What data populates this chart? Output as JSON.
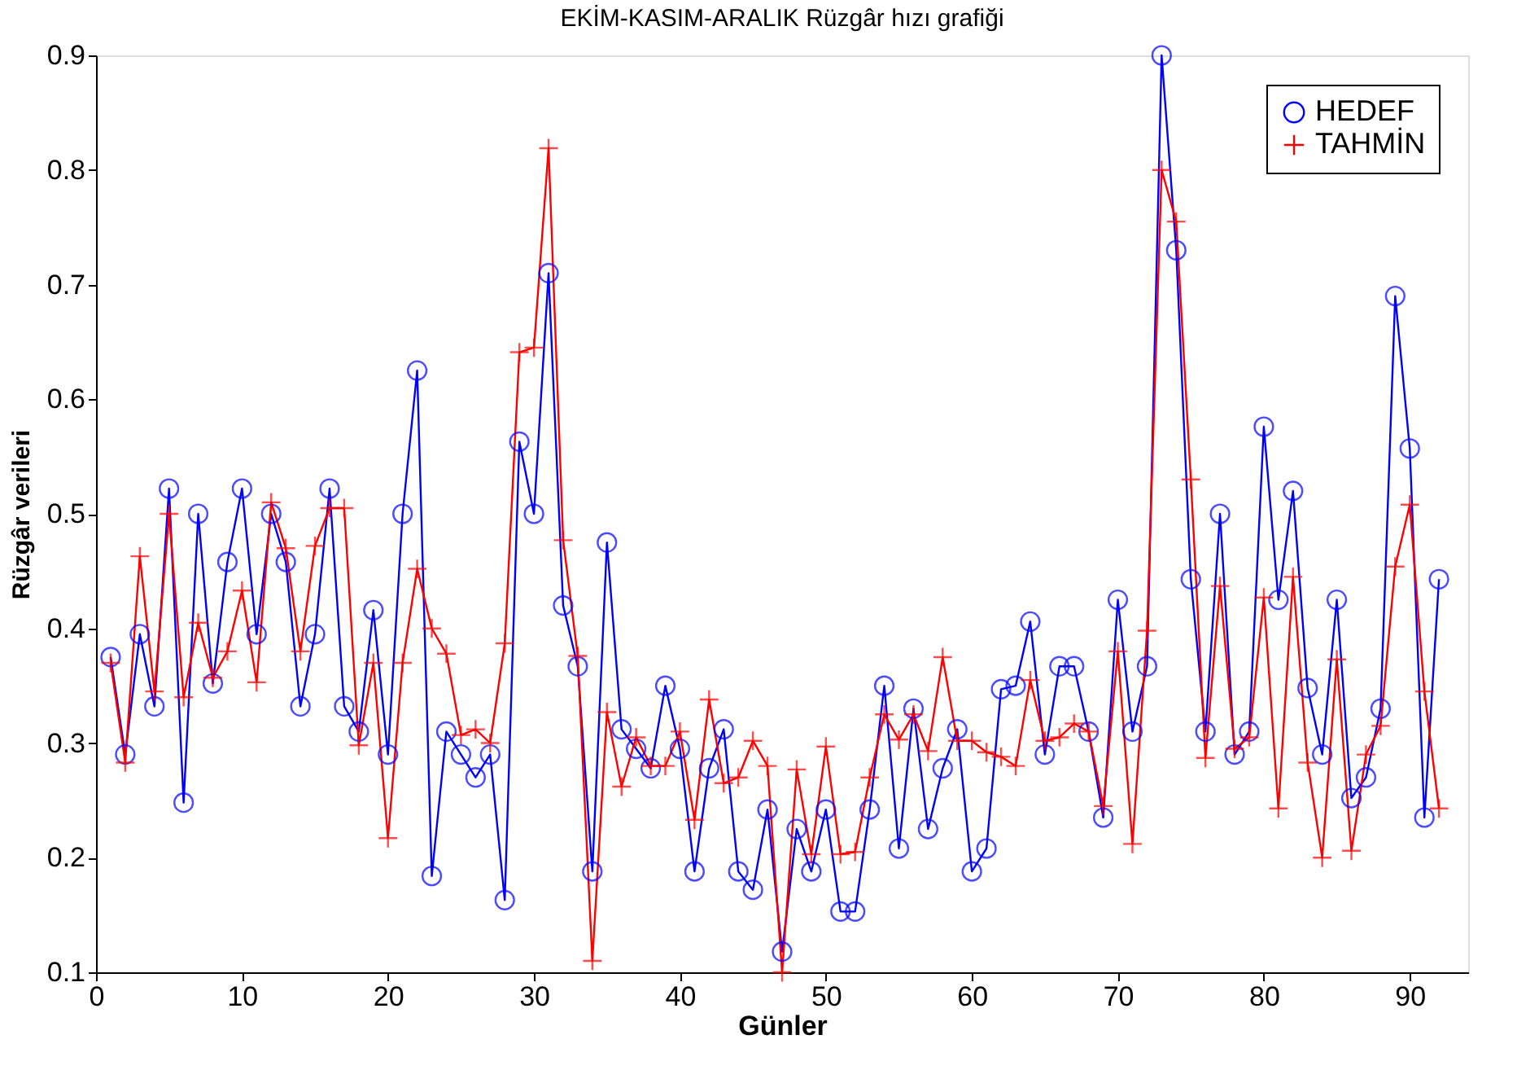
{
  "chart_data": {
    "type": "line",
    "title": "EKİM-KASIM-ARALIK Rüzgâr hızı grafiği",
    "xlabel": "Günler",
    "ylabel": "Rüzgâr verileri",
    "x": [
      1,
      2,
      3,
      4,
      5,
      6,
      7,
      8,
      9,
      10,
      11,
      12,
      13,
      14,
      15,
      16,
      17,
      18,
      19,
      20,
      21,
      22,
      23,
      24,
      25,
      26,
      27,
      28,
      29,
      30,
      31,
      32,
      33,
      34,
      35,
      36,
      37,
      38,
      39,
      40,
      41,
      42,
      43,
      44,
      45,
      46,
      47,
      48,
      49,
      50,
      51,
      52,
      53,
      54,
      55,
      56,
      57,
      58,
      59,
      60,
      61,
      62,
      63,
      64,
      65,
      66,
      67,
      68,
      69,
      70,
      71,
      72,
      73,
      74,
      75,
      76,
      77,
      78,
      79,
      80,
      81,
      82,
      83,
      84,
      85,
      86,
      87,
      88,
      89,
      90,
      91,
      92
    ],
    "series": [
      {
        "name": "HEDEF",
        "color": "#0000ff",
        "marker": "circle",
        "values": [
          0.375,
          0.29,
          0.395,
          0.332,
          0.522,
          0.248,
          0.5,
          0.352,
          0.458,
          0.522,
          0.395,
          0.5,
          0.458,
          0.332,
          0.395,
          0.522,
          0.332,
          0.31,
          0.416,
          0.29,
          0.5,
          0.625,
          0.184,
          0.31,
          0.29,
          0.27,
          0.29,
          0.163,
          0.563,
          0.5,
          0.71,
          0.42,
          0.367,
          0.188,
          0.475,
          0.312,
          0.295,
          0.278,
          0.35,
          0.295,
          0.188,
          0.278,
          0.312,
          0.188,
          0.172,
          0.242,
          0.118,
          0.225,
          0.188,
          0.242,
          0.153,
          0.153,
          0.242,
          0.35,
          0.208,
          0.33,
          0.225,
          0.278,
          0.312,
          0.188,
          0.208,
          0.347,
          0.35,
          0.406,
          0.29,
          0.367,
          0.367,
          0.31,
          0.235,
          0.425,
          0.31,
          0.367,
          0.9,
          0.73,
          0.443,
          0.31,
          0.5,
          0.29,
          0.31,
          0.576,
          0.425,
          0.52,
          0.348,
          0.29,
          0.425,
          0.252,
          0.27,
          0.33,
          0.69,
          0.557,
          0.235,
          0.443
        ]
      },
      {
        "name": "TAHMİN",
        "color": "#ff0000",
        "marker": "cross",
        "values": [
          0.37,
          0.283,
          0.463,
          0.345,
          0.5,
          0.34,
          0.405,
          0.357,
          0.38,
          0.433,
          0.353,
          0.51,
          0.47,
          0.38,
          0.472,
          0.505,
          0.505,
          0.298,
          0.37,
          0.217,
          0.37,
          0.452,
          0.4,
          0.378,
          0.307,
          0.312,
          0.3,
          0.387,
          0.641,
          0.645,
          0.819,
          0.477,
          0.376,
          0.11,
          0.327,
          0.262,
          0.305,
          0.28,
          0.28,
          0.31,
          0.233,
          0.338,
          0.265,
          0.27,
          0.302,
          0.28,
          0.1,
          0.277,
          0.203,
          0.297,
          0.203,
          0.205,
          0.27,
          0.325,
          0.303,
          0.325,
          0.293,
          0.375,
          0.302,
          0.302,
          0.292,
          0.288,
          0.28,
          0.355,
          0.302,
          0.305,
          0.317,
          0.31,
          0.245,
          0.38,
          0.212,
          0.398,
          0.8,
          0.755,
          0.53,
          0.287,
          0.437,
          0.295,
          0.305,
          0.427,
          0.243,
          0.445,
          0.283,
          0.2,
          0.373,
          0.206,
          0.29,
          0.315,
          0.454,
          0.508,
          0.345,
          0.243
        ]
      }
    ],
    "xlim": [
      0,
      94
    ],
    "xticks": [
      0,
      10,
      20,
      30,
      40,
      50,
      60,
      70,
      80,
      90
    ],
    "ylim": [
      0.1,
      0.9
    ],
    "yticks": [
      0.1,
      0.2,
      0.3,
      0.4,
      0.5,
      0.6,
      0.7,
      0.8,
      0.9
    ],
    "grid": false,
    "legend": "top right",
    "line_style": "solid"
  }
}
